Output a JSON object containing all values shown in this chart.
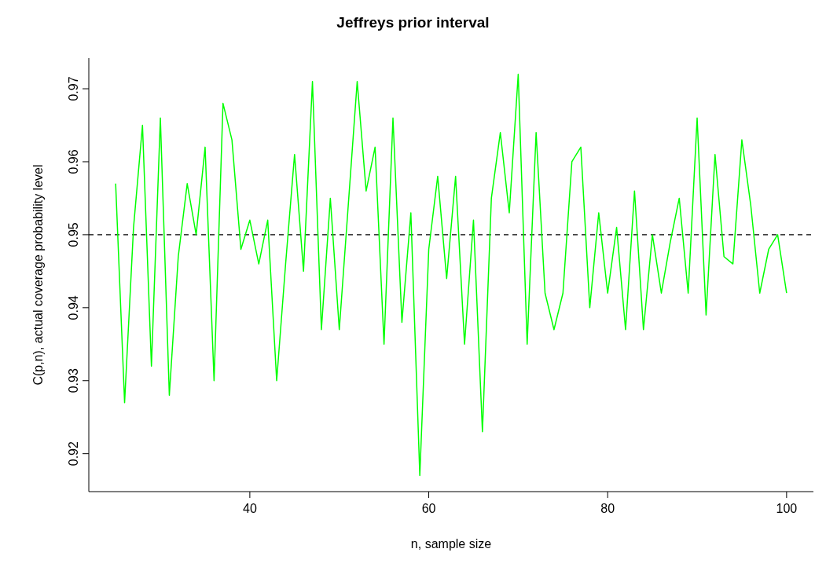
{
  "chart_data": {
    "type": "line",
    "title": "Jeffreys prior interval",
    "xlabel": "n, sample size",
    "ylabel": "C(p,n), actual coverage probability level",
    "x": [
      25,
      26,
      27,
      28,
      29,
      30,
      31,
      32,
      33,
      34,
      35,
      36,
      37,
      38,
      39,
      40,
      41,
      42,
      43,
      44,
      45,
      46,
      47,
      48,
      49,
      50,
      51,
      52,
      53,
      54,
      55,
      56,
      57,
      58,
      59,
      60,
      61,
      62,
      63,
      64,
      65,
      66,
      67,
      68,
      69,
      70,
      71,
      72,
      73,
      74,
      75,
      76,
      77,
      78,
      79,
      80,
      81,
      82,
      83,
      84,
      85,
      86,
      87,
      88,
      89,
      90,
      91,
      92,
      93,
      94,
      95,
      96,
      97,
      98,
      99,
      100
    ],
    "series": [
      {
        "color": "#00ff00",
        "values": [
          0.957,
          0.927,
          0.951,
          0.965,
          0.932,
          0.966,
          0.928,
          0.947,
          0.957,
          0.95,
          0.962,
          0.93,
          0.968,
          0.963,
          0.948,
          0.952,
          0.946,
          0.952,
          0.93,
          0.946,
          0.961,
          0.945,
          0.971,
          0.937,
          0.955,
          0.937,
          0.954,
          0.971,
          0.956,
          0.962,
          0.935,
          0.966,
          0.938,
          0.953,
          0.917,
          0.948,
          0.958,
          0.944,
          0.958,
          0.935,
          0.952,
          0.923,
          0.955,
          0.964,
          0.953,
          0.972,
          0.935,
          0.964,
          0.942,
          0.937,
          0.942,
          0.96,
          0.962,
          0.94,
          0.953,
          0.942,
          0.951,
          0.937,
          0.956,
          0.937,
          0.95,
          0.942,
          0.949,
          0.955,
          0.942,
          0.966,
          0.939,
          0.961,
          0.947,
          0.946,
          0.963,
          0.954,
          0.942,
          0.948,
          0.95,
          0.942
        ]
      }
    ],
    "xlim": [
      22,
      103
    ],
    "xticks": [
      40,
      60,
      80,
      100
    ],
    "ylim": [
      0.9148,
      0.9742
    ],
    "yticks": [
      0.92,
      0.93,
      0.94,
      0.95,
      0.96,
      0.97
    ],
    "ref_lines": [
      {
        "axis": "y",
        "value": 0.95,
        "color": "#000000",
        "line_style": "dashed"
      }
    ]
  }
}
